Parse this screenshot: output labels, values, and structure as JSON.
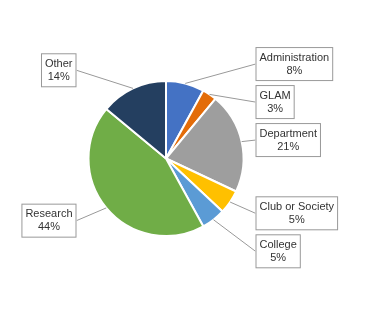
{
  "chart_data": {
    "type": "pie",
    "categories": [
      "Administration",
      "GLAM",
      "Department",
      "Club or Society",
      "College",
      "Research",
      "Other"
    ],
    "values": [
      8,
      3,
      21,
      5,
      5,
      44,
      14
    ],
    "value_labels": [
      "8%",
      "3%",
      "21%",
      "5%",
      "5%",
      "44%",
      "14%"
    ],
    "colors": [
      "#4472C4",
      "#E36C09",
      "#9E9E9E",
      "#FFC000",
      "#5B9BD5",
      "#70AD47",
      "#243F60"
    ],
    "data_labels": true
  }
}
